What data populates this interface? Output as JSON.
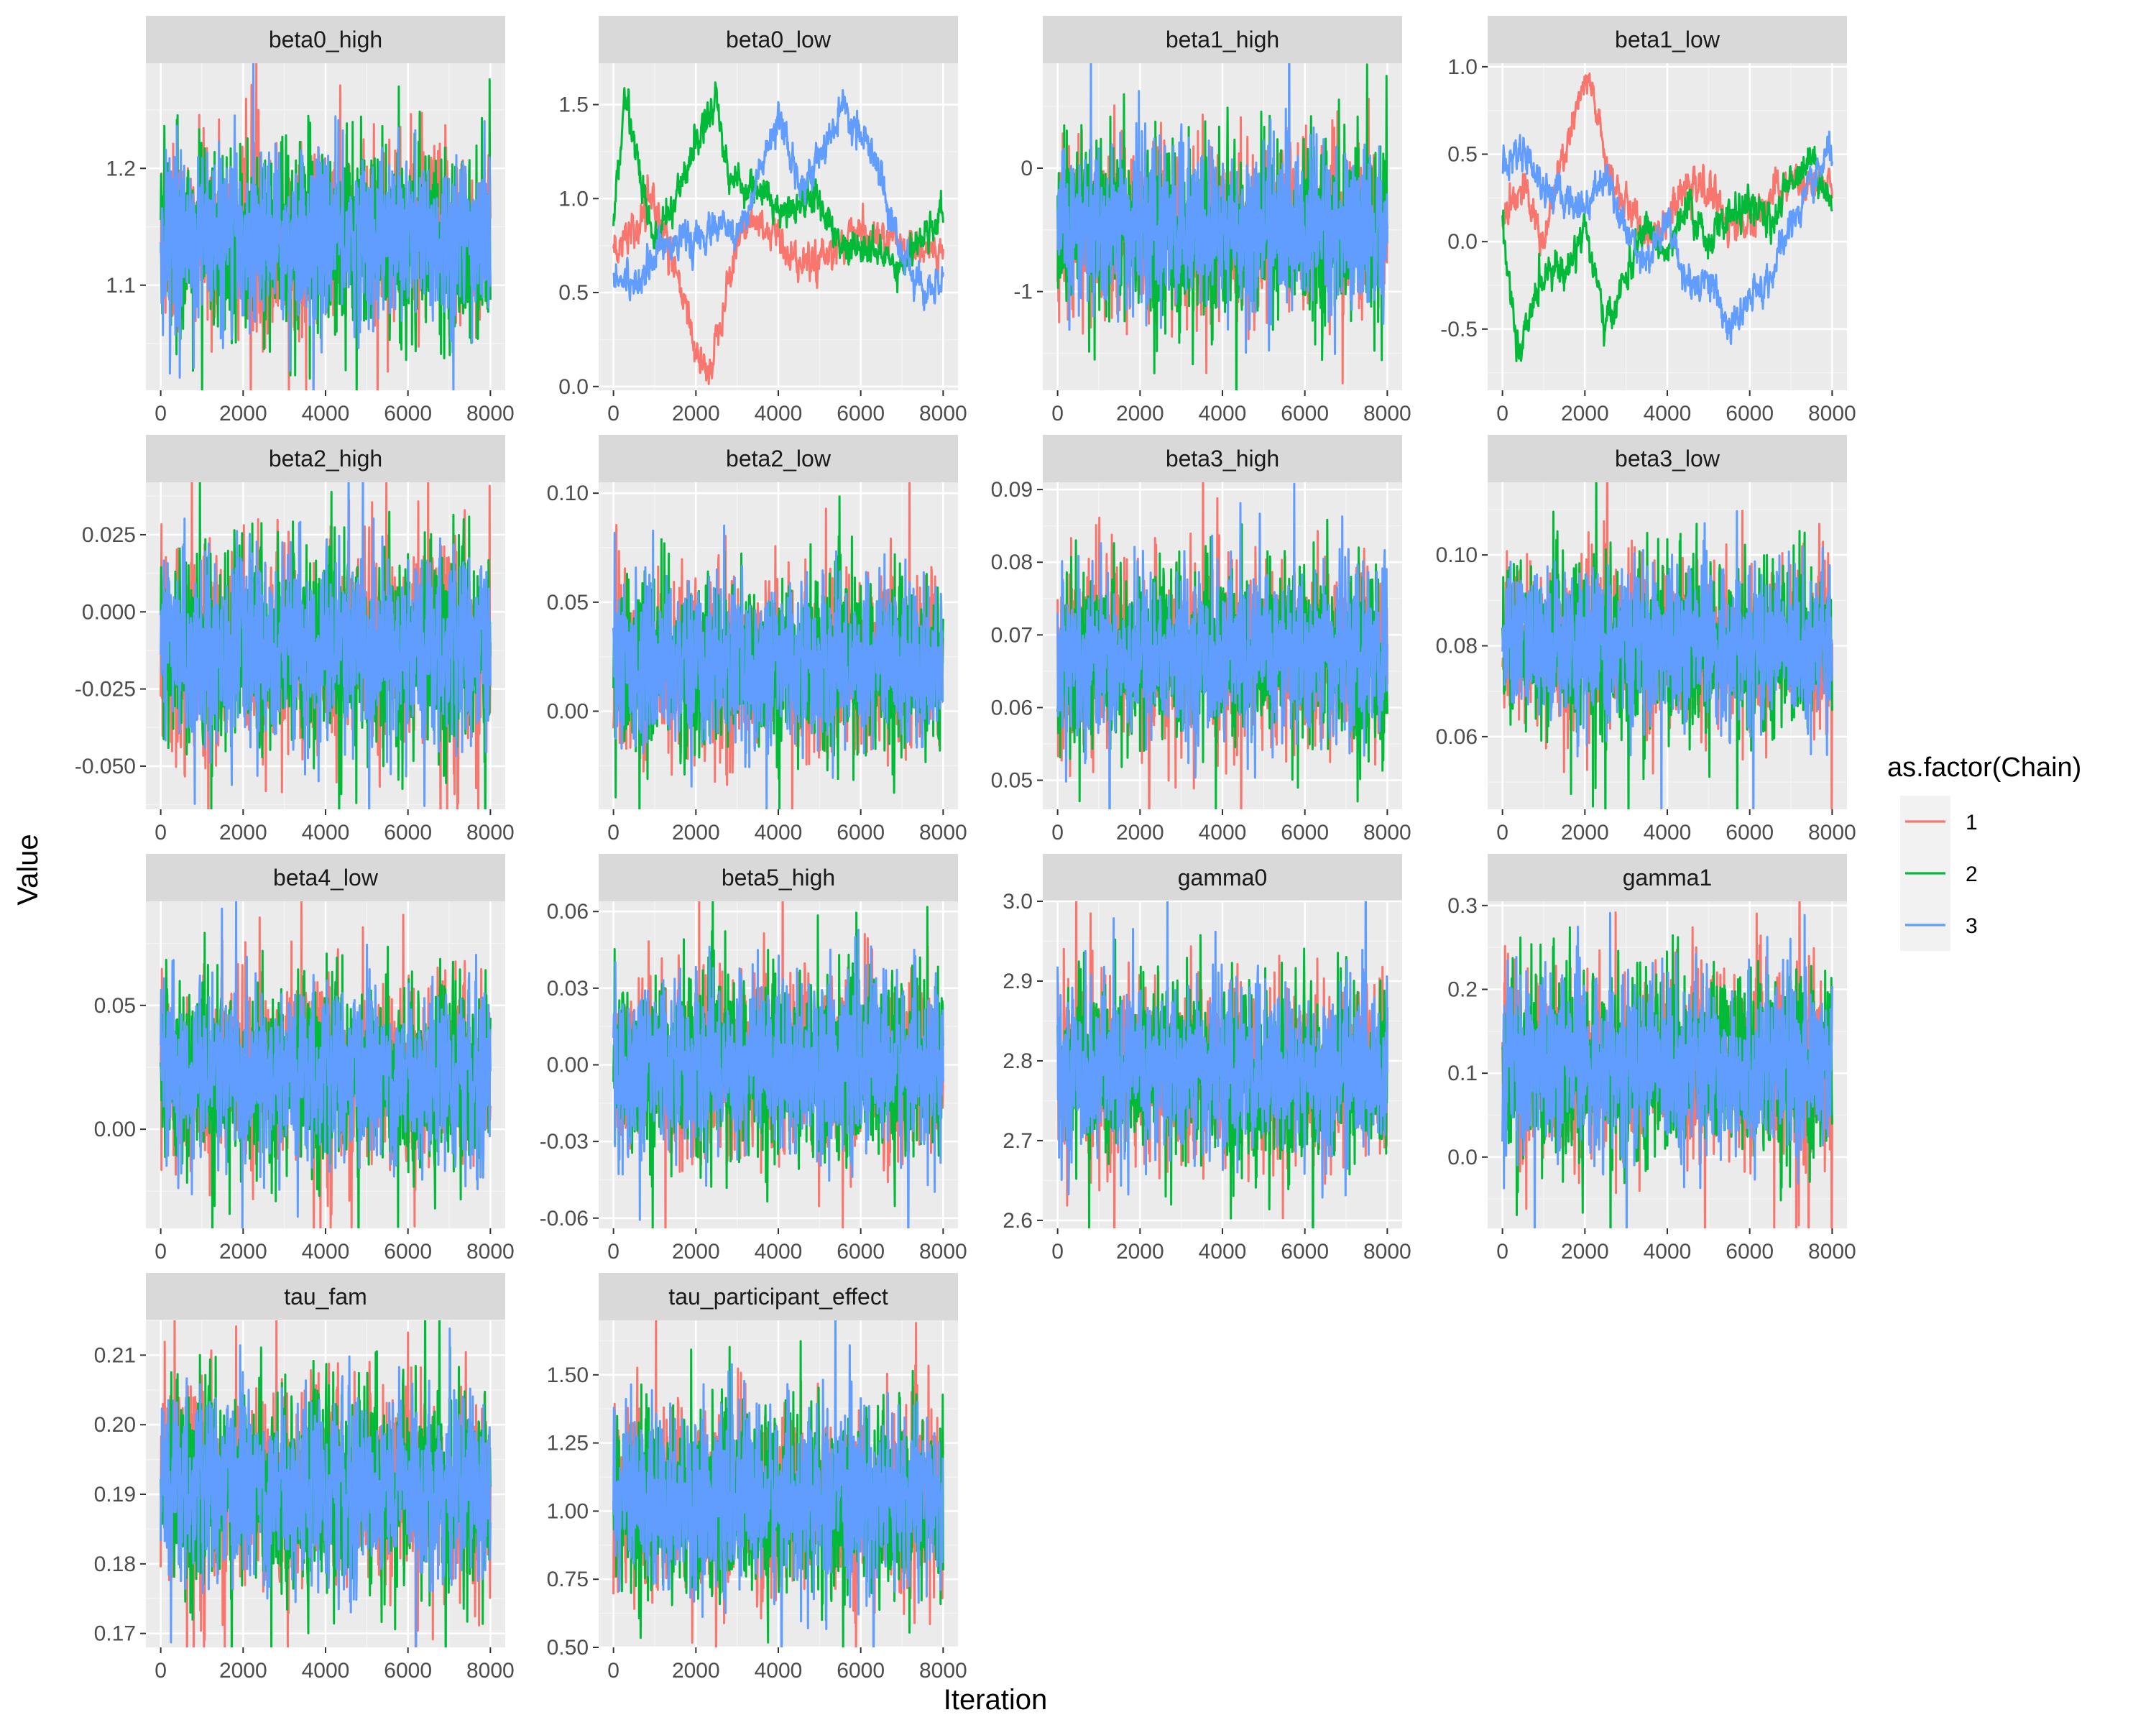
{
  "chart_data": {
    "type": "line",
    "facet_layout": "4 columns, 4 rows",
    "x_label": "Iteration",
    "y_label": "Value",
    "x_ticks": [
      0,
      2000,
      4000,
      6000,
      8000
    ],
    "x_range": [
      0,
      8000
    ],
    "grid": true,
    "legend": {
      "title": "as.factor(Chain)",
      "position": "right",
      "entries": [
        {
          "label": "1",
          "color": "#F8766D"
        },
        {
          "label": "2",
          "color": "#00BA38"
        },
        {
          "label": "3",
          "color": "#619CFF"
        }
      ]
    },
    "panels": [
      {
        "title": "beta0_high",
        "ylim": [
          1.01,
          1.29
        ],
        "y_ticks": [
          1.1,
          1.2
        ],
        "y_tick_labels": [
          "1.1",
          "1.2"
        ],
        "mixing": "good",
        "center": 1.14,
        "spread": 0.04
      },
      {
        "title": "beta0_low",
        "ylim": [
          -0.02,
          1.72
        ],
        "y_ticks": [
          0.0,
          0.5,
          1.0,
          1.5
        ],
        "y_tick_labels": [
          "0.0",
          "0.5",
          "1.0",
          "1.5"
        ],
        "mixing": "poor",
        "chains": [
          {
            "x": [
              0,
              500,
              1000,
              1500,
              2000,
              2300,
              2700,
              3200,
              4000,
              4500,
              5000,
              6000,
              7000,
              8000
            ],
            "y": [
              0.75,
              0.8,
              1.0,
              0.6,
              0.2,
              0.05,
              0.5,
              0.9,
              0.8,
              0.65,
              0.7,
              0.8,
              0.75,
              0.7
            ]
          },
          {
            "x": [
              0,
              300,
              600,
              1000,
              1500,
              2000,
              2500,
              2800,
              3500,
              4000,
              5000,
              5500,
              6500,
              7000,
              7500,
              8000
            ],
            "y": [
              0.9,
              1.55,
              1.2,
              0.75,
              1.0,
              1.3,
              1.55,
              1.1,
              1.05,
              0.95,
              1.0,
              0.75,
              0.7,
              0.65,
              0.8,
              0.95
            ]
          },
          {
            "x": [
              0,
              500,
              1000,
              1500,
              2000,
              2500,
              3000,
              3500,
              4000,
              4500,
              5000,
              5500,
              6000,
              6500,
              7000,
              7500,
              8000
            ],
            "y": [
              0.6,
              0.55,
              0.7,
              0.8,
              0.75,
              0.85,
              0.8,
              1.1,
              1.4,
              1.1,
              1.2,
              1.45,
              1.35,
              1.1,
              0.7,
              0.5,
              0.55
            ]
          }
        ]
      },
      {
        "title": "beta1_high",
        "ylim": [
          -1.8,
          0.85
        ],
        "y_ticks": [
          -1,
          0
        ],
        "y_tick_labels": [
          "-1",
          "0"
        ],
        "mixing": "good",
        "center": -0.5,
        "spread": 0.35
      },
      {
        "title": "beta1_low",
        "ylim": [
          -0.85,
          1.02
        ],
        "y_ticks": [
          -0.5,
          0.0,
          0.5,
          1.0
        ],
        "y_tick_labels": [
          "-0.5",
          "0.0",
          "0.5",
          "1.0"
        ],
        "mixing": "poor",
        "chains": [
          {
            "x": [
              0,
              500,
              1000,
              1500,
              2000,
              2200,
              2500,
              3000,
              3500,
              4000,
              4500,
              5000,
              5500,
              6000,
              6500,
              7000,
              7500,
              8000
            ],
            "y": [
              0.2,
              0.3,
              0.0,
              0.5,
              0.9,
              0.85,
              0.45,
              0.2,
              0.05,
              0.15,
              0.3,
              0.3,
              0.1,
              0.1,
              0.25,
              0.35,
              0.3,
              0.35
            ]
          },
          {
            "x": [
              0,
              200,
              400,
              800,
              1200,
              1500,
              2000,
              2500,
              3000,
              3500,
              4000,
              4500,
              5000,
              5500,
              6000,
              6500,
              7000,
              7500,
              8000
            ],
            "y": [
              0.1,
              -0.3,
              -0.7,
              -0.3,
              -0.1,
              -0.2,
              0.1,
              -0.5,
              -0.2,
              0.1,
              -0.1,
              0.2,
              0.0,
              0.15,
              0.2,
              0.1,
              0.35,
              0.5,
              0.2
            ]
          },
          {
            "x": [
              0,
              500,
              1000,
              1500,
              2000,
              2500,
              3000,
              3500,
              4000,
              4500,
              5000,
              5500,
              6000,
              6500,
              7000,
              7500,
              8000
            ],
            "y": [
              0.4,
              0.55,
              0.3,
              0.25,
              0.2,
              0.4,
              0.05,
              -0.1,
              0.1,
              -0.25,
              -0.2,
              -0.5,
              -0.35,
              -0.2,
              0.1,
              0.3,
              0.55
            ]
          }
        ]
      },
      {
        "title": "beta2_high",
        "ylim": [
          -0.064,
          0.042
        ],
        "y_ticks": [
          -0.05,
          -0.025,
          0.0,
          0.025
        ],
        "y_tick_labels": [
          "-0.050",
          "-0.025",
          "0.000",
          "0.025"
        ],
        "mixing": "good",
        "center": -0.012,
        "spread": 0.016
      },
      {
        "title": "beta2_low",
        "ylim": [
          -0.045,
          0.105
        ],
        "y_ticks": [
          0.0,
          0.05,
          0.1
        ],
        "y_tick_labels": [
          "0.00",
          "0.05",
          "0.10"
        ],
        "mixing": "good",
        "center": 0.022,
        "spread": 0.02
      },
      {
        "title": "beta3_high",
        "ylim": [
          0.046,
          0.091
        ],
        "y_ticks": [
          0.05,
          0.06,
          0.07,
          0.08,
          0.09
        ],
        "y_tick_labels": [
          "0.05",
          "0.06",
          "0.07",
          "0.08",
          "0.09"
        ],
        "mixing": "good",
        "center": 0.067,
        "spread": 0.006
      },
      {
        "title": "beta3_low",
        "ylim": [
          0.044,
          0.116
        ],
        "y_ticks": [
          0.06,
          0.08,
          0.1
        ],
        "y_tick_labels": [
          "0.06",
          "0.08",
          "0.10"
        ],
        "mixing": "good",
        "center": 0.08,
        "spread": 0.009
      },
      {
        "title": "beta4_low",
        "ylim": [
          -0.04,
          0.092
        ],
        "y_ticks": [
          0.0,
          0.05
        ],
        "y_tick_labels": [
          "0.00",
          "0.05"
        ],
        "mixing": "good",
        "center": 0.022,
        "spread": 0.018
      },
      {
        "title": "beta5_high",
        "ylim": [
          -0.064,
          0.064
        ],
        "y_ticks": [
          -0.06,
          -0.03,
          0.0,
          0.03,
          0.06
        ],
        "y_tick_labels": [
          "-0.06",
          "-0.03",
          "0.00",
          "0.03",
          "0.06"
        ],
        "mixing": "good",
        "center": 0.0,
        "spread": 0.018
      },
      {
        "title": "gamma0",
        "ylim": [
          2.59,
          3.0
        ],
        "y_ticks": [
          2.6,
          2.7,
          2.8,
          2.9,
          3.0
        ],
        "y_tick_labels": [
          "2.6",
          "2.7",
          "2.8",
          "2.9",
          "3.0"
        ],
        "mixing": "good",
        "center": 2.785,
        "spread": 0.055
      },
      {
        "title": "gamma1",
        "ylim": [
          -0.085,
          0.305
        ],
        "y_ticks": [
          0.0,
          0.1,
          0.2,
          0.3
        ],
        "y_tick_labels": [
          "0.0",
          "0.1",
          "0.2",
          "0.3"
        ],
        "mixing": "good",
        "center": 0.11,
        "spread": 0.055
      },
      {
        "title": "tau_fam",
        "ylim": [
          0.168,
          0.215
        ],
        "y_ticks": [
          0.17,
          0.18,
          0.19,
          0.2,
          0.21
        ],
        "y_tick_labels": [
          "0.17",
          "0.18",
          "0.19",
          "0.20",
          "0.21"
        ],
        "mixing": "good",
        "center": 0.191,
        "spread": 0.007
      },
      {
        "title": "tau_participant_effect",
        "ylim": [
          0.5,
          1.7
        ],
        "y_ticks": [
          0.5,
          0.75,
          1.0,
          1.25,
          1.5
        ],
        "y_tick_labels": [
          "0.50",
          "0.75",
          "1.00",
          "1.25",
          "1.50"
        ],
        "mixing": "good",
        "center": 1.04,
        "spread": 0.17
      }
    ]
  }
}
